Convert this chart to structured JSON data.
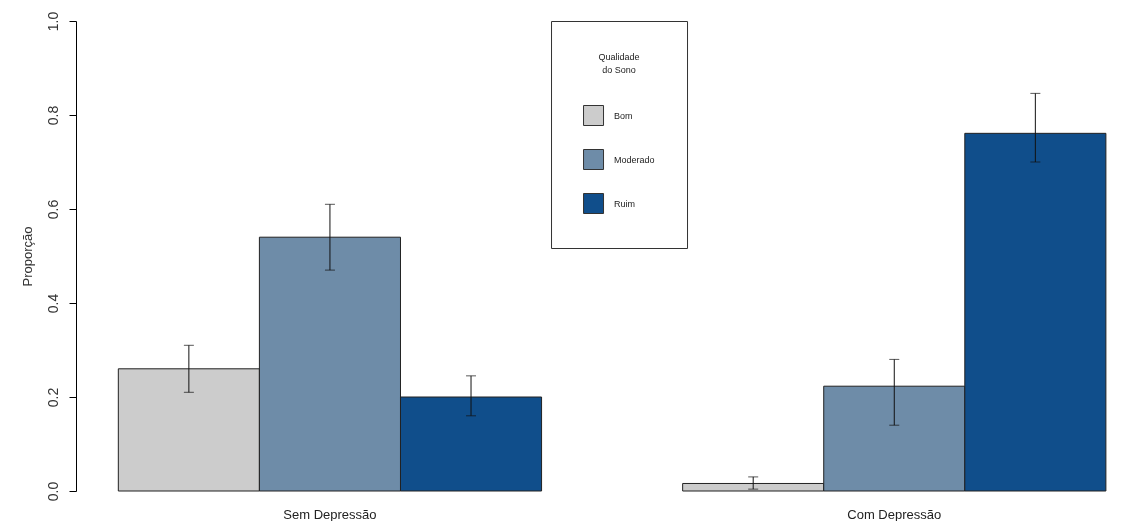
{
  "chart_data": {
    "type": "bar",
    "ylabel": "Proporção",
    "legend_title": "Qualidade\ndo Sono",
    "categories": [
      "Sem Depressão",
      "Com Depressão"
    ],
    "series": [
      {
        "name": "Bom",
        "color": "#cccccc",
        "values": [
          0.26,
          0.016
        ],
        "errors": [
          [
            0.21,
            0.31
          ],
          [
            0.004,
            0.03
          ]
        ]
      },
      {
        "name": "Moderado",
        "color": "#6e8ca8",
        "values": [
          0.54,
          0.223
        ],
        "errors": [
          [
            0.47,
            0.61
          ],
          [
            0.14,
            0.28
          ]
        ]
      },
      {
        "name": "Ruim",
        "color": "#104e8b",
        "values": [
          0.2,
          0.761
        ],
        "errors": [
          [
            0.16,
            0.245
          ],
          [
            0.7,
            0.846
          ]
        ]
      }
    ],
    "ylim": [
      0,
      1
    ],
    "yticks": [
      {
        "value": 0,
        "label": "0.0"
      },
      0.2,
      0.4,
      0.6,
      0.8,
      {
        "value": 1,
        "label": "1.0"
      }
    ],
    "legend": "top"
  }
}
